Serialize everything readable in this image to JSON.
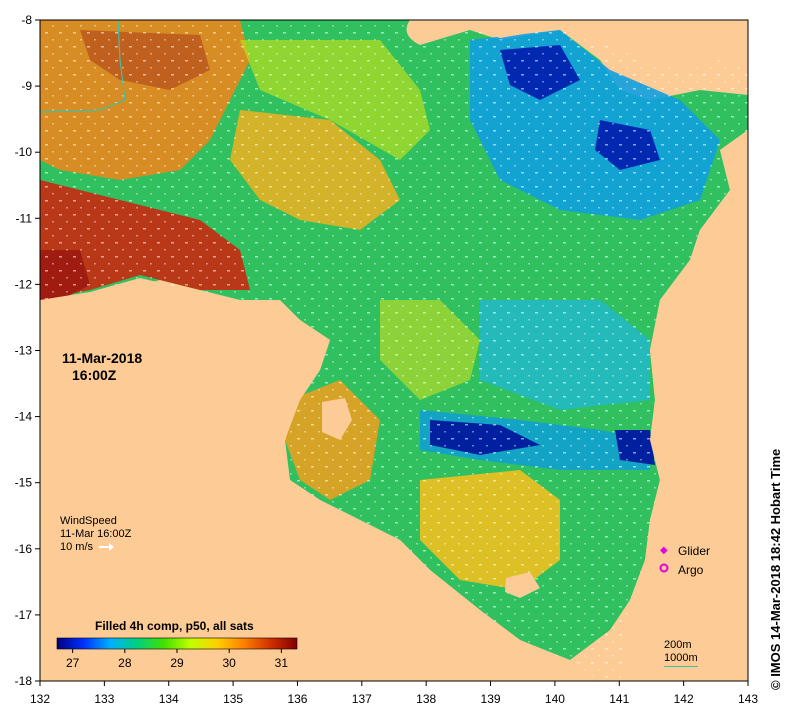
{
  "date_label": "11-Mar-2018",
  "time_label": "16:00Z",
  "wind": {
    "title": "WindSpeed",
    "time": "11-Mar 16:00Z",
    "scale_label": "10 m/s"
  },
  "colorbar": {
    "title": "Filled 4h comp, p50, all sats",
    "ticks": [
      "27",
      "28",
      "29",
      "30",
      "31"
    ],
    "range": [
      26.7,
      31.3
    ],
    "colors": [
      "#00007f",
      "#0030ff",
      "#00b0ff",
      "#00d080",
      "#40e000",
      "#c0ff00",
      "#ffd000",
      "#ff8000",
      "#d03000",
      "#800000"
    ]
  },
  "legend": {
    "glider": "Glider",
    "argo": "Argo",
    "marker_color": "#e000e0"
  },
  "depth": {
    "contour1": "200m",
    "contour2": "1000m"
  },
  "credit": "© IMOS 14-Mar-2018 18:42 Hobart Time",
  "axes": {
    "x_ticks": [
      "132",
      "133",
      "134",
      "135",
      "136",
      "137",
      "138",
      "139",
      "140",
      "141",
      "142",
      "143"
    ],
    "y_ticks": [
      "-8",
      "-9",
      "-10",
      "-11",
      "-12",
      "-13",
      "-14",
      "-15",
      "-16",
      "-17",
      "-18"
    ],
    "lon_range": [
      132,
      143
    ],
    "lat_range": [
      -18,
      -8
    ]
  },
  "colors": {
    "land": "#fdcb96",
    "sea_mid": "#40c860"
  }
}
